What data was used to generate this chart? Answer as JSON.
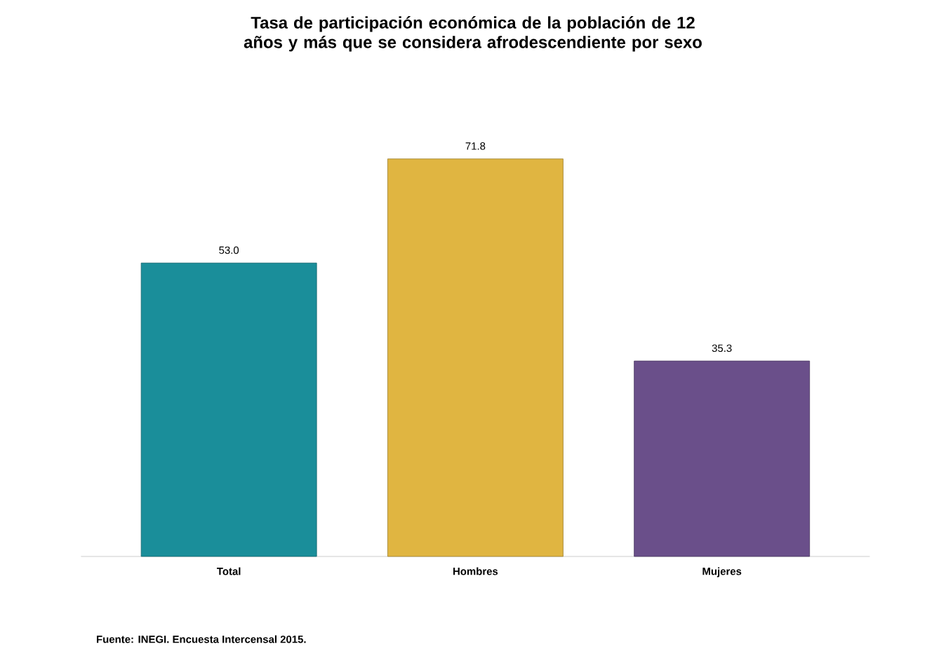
{
  "chart_data": {
    "type": "bar",
    "title": "Tasa de participación económica de la población de 12 años y más que se considera afrodescendiente por sexo",
    "categories": [
      "Total",
      "Hombres",
      "Mujeres"
    ],
    "values": [
      53.0,
      71.8,
      35.3
    ],
    "value_labels": [
      "53.0",
      "71.8",
      "35.3"
    ],
    "colors": [
      "#1a8e9a",
      "#e0b541",
      "#6a4f8a"
    ],
    "annotations": [
      "Fuente: INEGI. Encuesta Intercensal 2015."
    ]
  }
}
